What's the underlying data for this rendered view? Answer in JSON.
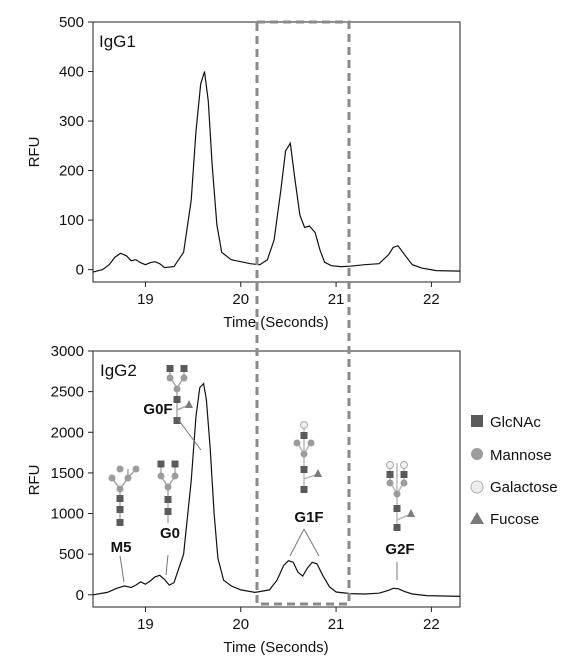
{
  "chart_data": [
    {
      "type": "line",
      "panel": "IgG1",
      "title": "IgG1",
      "xlabel": "Time (Seconds)",
      "ylabel": "RFU",
      "xlim": [
        18.45,
        22.3
      ],
      "ylim": [
        -25,
        500
      ],
      "xticks": [
        19,
        20,
        21,
        22
      ],
      "yticks": [
        0,
        100,
        200,
        300,
        400,
        500
      ],
      "grid": false,
      "series": [
        {
          "x": [
            18.45,
            18.55,
            18.62,
            18.68,
            18.74,
            18.8,
            18.85,
            18.9,
            18.95,
            19.0,
            19.05,
            19.1,
            19.15,
            19.2,
            19.3,
            19.4,
            19.48,
            19.53,
            19.58,
            19.62,
            19.66,
            19.7,
            19.75,
            19.8,
            19.9,
            20.0,
            20.1,
            20.2,
            20.28,
            20.35,
            20.42,
            20.47,
            20.52,
            20.57,
            20.62,
            20.67,
            20.72,
            20.78,
            20.83,
            20.88,
            20.95,
            21.05,
            21.15,
            21.3,
            21.45,
            21.55,
            21.6,
            21.65,
            21.72,
            21.8,
            21.9,
            22.05,
            22.3
          ],
          "y": [
            -5,
            0,
            10,
            25,
            33,
            28,
            18,
            20,
            14,
            10,
            14,
            16,
            12,
            4,
            6,
            35,
            140,
            280,
            375,
            400,
            340,
            210,
            90,
            35,
            20,
            16,
            12,
            10,
            20,
            60,
            160,
            240,
            255,
            180,
            110,
            85,
            88,
            75,
            40,
            15,
            8,
            6,
            7,
            10,
            12,
            30,
            45,
            48,
            30,
            10,
            3,
            -2,
            -3
          ]
        }
      ]
    },
    {
      "type": "line",
      "panel": "IgG2",
      "title": "IgG2",
      "xlabel": "Time (Seconds)",
      "ylabel": "RFU",
      "xlim": [
        18.45,
        22.3
      ],
      "ylim": [
        -150,
        3000
      ],
      "xticks": [
        19,
        20,
        21,
        22
      ],
      "yticks": [
        0,
        500,
        1000,
        1500,
        2000,
        2500,
        3000
      ],
      "grid": false,
      "series": [
        {
          "x": [
            18.45,
            18.6,
            18.7,
            18.78,
            18.85,
            18.9,
            18.95,
            19.0,
            19.05,
            19.1,
            19.15,
            19.2,
            19.25,
            19.3,
            19.4,
            19.48,
            19.53,
            19.57,
            19.61,
            19.64,
            19.68,
            19.72,
            19.76,
            19.82,
            19.9,
            20.0,
            20.15,
            20.3,
            20.38,
            20.45,
            20.5,
            20.55,
            20.6,
            20.65,
            20.7,
            20.75,
            20.8,
            20.86,
            20.93,
            21.0,
            21.15,
            21.3,
            21.45,
            21.55,
            21.6,
            21.65,
            21.72,
            21.8,
            21.95,
            22.3
          ],
          "y": [
            0,
            30,
            80,
            110,
            90,
            120,
            160,
            130,
            170,
            220,
            240,
            190,
            120,
            150,
            500,
            1400,
            2200,
            2550,
            2600,
            2400,
            1800,
            1000,
            450,
            180,
            110,
            60,
            30,
            60,
            180,
            360,
            420,
            400,
            280,
            230,
            330,
            400,
            380,
            240,
            100,
            35,
            15,
            10,
            20,
            55,
            80,
            75,
            40,
            10,
            -10,
            -20
          ]
        }
      ],
      "annotations": [
        "M5",
        "G0",
        "G0F",
        "G1F",
        "G2F"
      ]
    }
  ],
  "legend": {
    "items": [
      {
        "label": "GlcNAc",
        "shape": "square",
        "color": "#5a5a5a"
      },
      {
        "label": "Mannose",
        "shape": "circle",
        "color": "#9c9c9c"
      },
      {
        "label": "Galactose",
        "shape": "circle",
        "color": "#e8e8e8"
      },
      {
        "label": "Fucose",
        "shape": "triangle",
        "color": "#7a7a7a"
      }
    ]
  },
  "highlight_box": {
    "x_range": [
      20.18,
      21.12
    ],
    "style": "dashed",
    "color": "#8a8a8a"
  }
}
